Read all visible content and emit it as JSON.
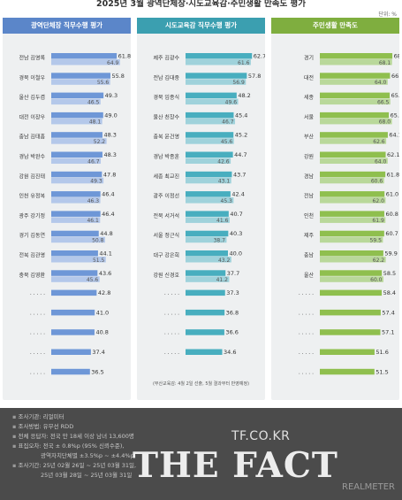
{
  "header": {
    "title": "2025년 3월 광역단체장·시도교육감·주민생활 만족도 평가",
    "unit": "단위: %"
  },
  "colors": {
    "blue": "#6e97d7",
    "teal": "#48aebf",
    "green": "#8fbf4e",
    "footer_bg": "#4b4b4b"
  },
  "chart_data": [
    {
      "type": "bar",
      "title": "광역단체장 직무수행 평가",
      "color": "#6e97d7",
      "categories": [
        "전남 김영록",
        "경북 이철우",
        "울산 김두겸",
        "대전 이장우",
        "충남 김태흠",
        "경남 박완수",
        "강원 김진태",
        "인천 유정복",
        "광주 강기정",
        "경기 김동연",
        "전북 김관영",
        "충북 김영환",
        "· ·   · · ·",
        "· ·   · · ·",
        "· ·   · · ·",
        "· ·   · · ·",
        "· ·   · · ·"
      ],
      "series": [
        {
          "values": [
            61.8,
            55.8,
            49.3,
            49.0,
            48.3,
            48.3,
            47.8,
            46.4,
            46.4,
            44.8,
            44.1,
            43.6,
            42.8,
            41.0,
            40.8,
            37.4,
            36.5
          ]
        },
        {
          "values": [
            64.9,
            55.6,
            46.5,
            48.1,
            52.2,
            46.7,
            49.3,
            46.3,
            46.1,
            50.8,
            51.5,
            45.6,
            null,
            null,
            null,
            null,
            null
          ]
        }
      ],
      "xlim": [
        0,
        70
      ]
    },
    {
      "type": "bar",
      "title": "시도교육감 직무수행 평가",
      "color": "#48aebf",
      "categories": [
        "제주 김광수",
        "전남 김대중",
        "경북 임종식",
        "울산 천창수",
        "충북 윤건영",
        "경남 박종훈",
        "세종 최교진",
        "광주 이정선",
        "전북 서거석",
        "서울 정근식",
        "대구 강은희",
        "강원 신경호",
        "· ·   · · ·",
        "· ·   · · ·",
        "· ·   · · ·",
        "· ·   · · ·"
      ],
      "series": [
        {
          "values": [
            62.7,
            57.8,
            48.2,
            45.4,
            45.2,
            44.7,
            43.7,
            42.4,
            40.7,
            40.3,
            40.0,
            37.7,
            37.3,
            36.8,
            36.6,
            34.6
          ]
        },
        {
          "values": [
            61.6,
            56.9,
            49.6,
            46.7,
            45.6,
            42.6,
            43.1,
            45.3,
            41.6,
            38.7,
            43.2,
            41.2,
            null,
            null,
            null,
            null
          ]
        }
      ],
      "xlim": [
        0,
        70
      ],
      "note": "(부산교육감: 4월 2일 선출, 5월 결과부터 반영예정)"
    },
    {
      "type": "bar",
      "title": "주민생활 만족도",
      "color": "#8fbf4e",
      "categories": [
        "경기",
        "대전",
        "세종",
        "서울",
        "부산",
        "강원",
        "경남",
        "전남",
        "인천",
        "제주",
        "충남",
        "울산",
        "· ·   · · ·",
        "· ·   · · ·",
        "· ·   · · ·",
        "· ·   · · ·",
        "· ·   · · ·"
      ],
      "series": [
        {
          "values": [
            68.4,
            66.2,
            65.9,
            65.1,
            64.1,
            62.1,
            61.8,
            61.0,
            60.8,
            60.7,
            59.9,
            58.5,
            58.4,
            57.4,
            57.1,
            51.6,
            51.5
          ]
        },
        {
          "values": [
            68.1,
            64.0,
            66.5,
            68.0,
            62.6,
            64.0,
            60.6,
            62.0,
            61.9,
            59.5,
            62.2,
            60.0,
            null,
            null,
            null,
            null,
            null
          ]
        }
      ],
      "xlim": [
        0,
        70
      ]
    }
  ],
  "footer": {
    "lines": [
      "조사기관: 리얼미터",
      "조사방법: 유무선 RDD",
      "전체 응답자: 전국 만 18세 이상 남녀 13,600명",
      "표집오차: 전국 ± 0.8%p (95% 신뢰수준),",
      "광역자치단체별 ±3.5%p ~ ±4.4%p",
      "조사기간: 25년 02월 26일 ~ 25년 03월 31일,",
      "25년 03월 28일 ~ 25년 03월 31일"
    ],
    "site": "TF.CO.KR",
    "brand": "THE FACT",
    "credit": "REALMETER"
  }
}
